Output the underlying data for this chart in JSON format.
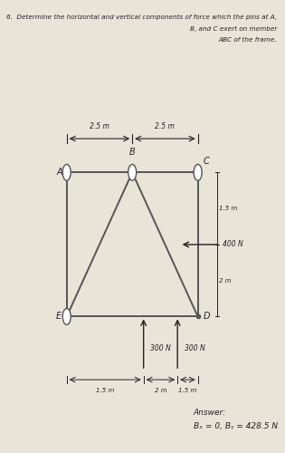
{
  "title_line1": "6.  Determine the horizontal and vertical components of force which the pins at A,",
  "title_line2": "B, and C exert on member",
  "title_line3": "ABC of the frame.",
  "background_color": "#e8e4d8",
  "frame_color": "#555555",
  "text_color": "#222222",
  "answer_line1": "Answer:",
  "answer_line2": "Bₓ = 0, Bᵧ = 428.5 N",
  "dim_25m_top1": "2.5 m",
  "dim_25m_top2": "2.5 m",
  "dim_15m_right": "1.5 m",
  "dim_2m_right": "2 m",
  "dim_15m_bot1": "1.5 m",
  "dim_2m_bot": "2 m",
  "dim_15m_bot2": "1.5 m",
  "force_400": "400 N",
  "force_300a": "300 N",
  "force_300b": "300 N",
  "labels": {
    "A": "A",
    "B": "B",
    "C": "C",
    "D": "D",
    "E": "E"
  }
}
